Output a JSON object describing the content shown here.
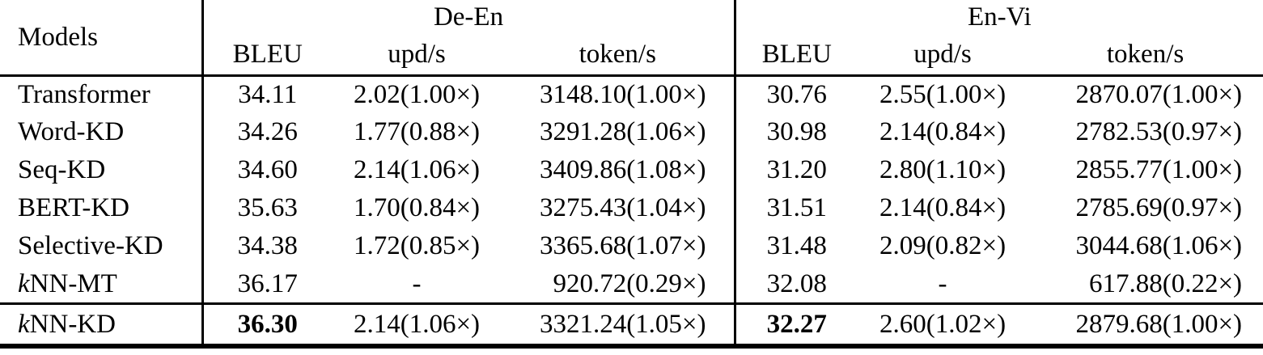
{
  "table": {
    "header": {
      "models_label": "Models",
      "groups": [
        {
          "label": "De-En",
          "columns": [
            "BLEU",
            "upd/s",
            "token/s"
          ]
        },
        {
          "label": "En-Vi",
          "columns": [
            "BLEU",
            "upd/s",
            "token/s"
          ]
        }
      ]
    },
    "rows": [
      {
        "model_italic_prefix": "",
        "model": "Transformer",
        "values": [
          "34.11",
          "2.02(1.00×)",
          "3148.10(1.00×)",
          "30.76",
          "2.55(1.00×)",
          "2870.07(1.00×)"
        ],
        "bold_indices": [],
        "final": false
      },
      {
        "model_italic_prefix": "",
        "model": "Word-KD",
        "values": [
          "34.26",
          "1.77(0.88×)",
          "3291.28(1.06×)",
          "30.98",
          "2.14(0.84×)",
          "2782.53(0.97×)"
        ],
        "bold_indices": [],
        "final": false
      },
      {
        "model_italic_prefix": "",
        "model": "Seq-KD",
        "values": [
          "34.60",
          "2.14(1.06×)",
          "3409.86(1.08×)",
          "31.20",
          "2.80(1.10×)",
          "2855.77(1.00×)"
        ],
        "bold_indices": [],
        "final": false
      },
      {
        "model_italic_prefix": "",
        "model": "BERT-KD",
        "values": [
          "35.63",
          "1.70(0.84×)",
          "3275.43(1.04×)",
          "31.51",
          "2.14(0.84×)",
          "2785.69(0.97×)"
        ],
        "bold_indices": [],
        "final": false
      },
      {
        "model_italic_prefix": "",
        "model": "Selective-KD",
        "values": [
          "34.38",
          "1.72(0.85×)",
          "3365.68(1.07×)",
          "31.48",
          "2.09(0.82×)",
          "3044.68(1.06×)"
        ],
        "bold_indices": [],
        "final": false
      },
      {
        "model_italic_prefix": "k",
        "model": "NN-MT",
        "values": [
          "36.17",
          "-",
          "920.72(0.29×)",
          "32.08",
          "-",
          "617.88(0.22×)"
        ],
        "bold_indices": [],
        "final": false
      },
      {
        "model_italic_prefix": "k",
        "model": "NN-KD",
        "values": [
          "36.30",
          "2.14(1.06×)",
          "3321.24(1.05×)",
          "32.27",
          "2.60(1.02×)",
          "2879.68(1.00×)"
        ],
        "bold_indices": [
          0,
          3
        ],
        "final": true
      }
    ]
  },
  "colors": {
    "text": "#000000",
    "background": "#ffffff",
    "rule": "#000000"
  }
}
